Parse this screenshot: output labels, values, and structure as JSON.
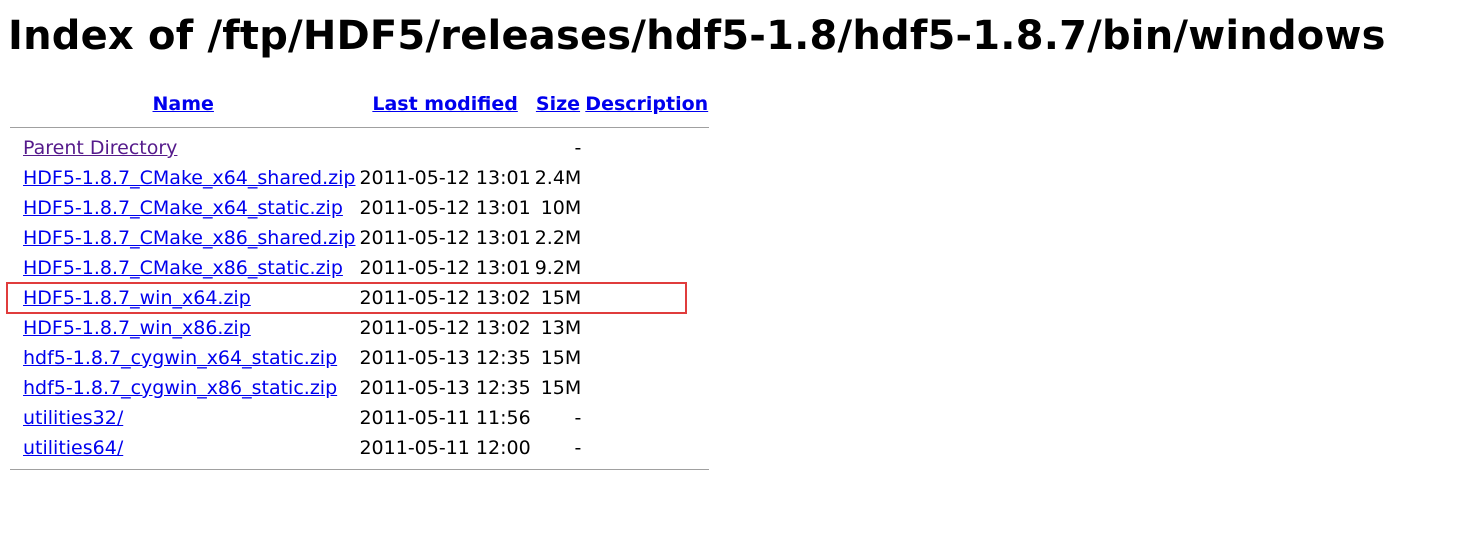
{
  "page": {
    "title": "Index of /ftp/HDF5/releases/hdf5-1.8/hdf5-1.8.7/bin/windows"
  },
  "columns": {
    "name": "Name",
    "last_modified": "Last modified",
    "size": "Size",
    "description": "Description"
  },
  "entries": [
    {
      "name": "Parent Directory",
      "modified": "",
      "size": "-",
      "description": "",
      "visited": true
    },
    {
      "name": "HDF5-1.8.7_CMake_x64_shared.zip",
      "modified": "2011-05-12 13:01",
      "size": "2.4M",
      "description": ""
    },
    {
      "name": "HDF5-1.8.7_CMake_x64_static.zip",
      "modified": "2011-05-12 13:01",
      "size": "10M",
      "description": ""
    },
    {
      "name": "HDF5-1.8.7_CMake_x86_shared.zip",
      "modified": "2011-05-12 13:01",
      "size": "2.2M",
      "description": ""
    },
    {
      "name": "HDF5-1.8.7_CMake_x86_static.zip",
      "modified": "2011-05-12 13:01",
      "size": "9.2M",
      "description": ""
    },
    {
      "name": "HDF5-1.8.7_win_x64.zip",
      "modified": "2011-05-12 13:02",
      "size": "15M",
      "description": "",
      "highlighted": true
    },
    {
      "name": "HDF5-1.8.7_win_x86.zip",
      "modified": "2011-05-12 13:02",
      "size": "13M",
      "description": ""
    },
    {
      "name": "hdf5-1.8.7_cygwin_x64_static.zip",
      "modified": "2011-05-13 12:35",
      "size": "15M",
      "description": ""
    },
    {
      "name": "hdf5-1.8.7_cygwin_x86_static.zip",
      "modified": "2011-05-13 12:35",
      "size": "15M",
      "description": ""
    },
    {
      "name": "utilities32/",
      "modified": "2011-05-11 11:56",
      "size": "-",
      "description": ""
    },
    {
      "name": "utilities64/",
      "modified": "2011-05-11 12:00",
      "size": "-",
      "description": ""
    }
  ],
  "colors": {
    "link": "#0000ee",
    "visited_link": "#551a8b",
    "highlight_border": "#e03c3c",
    "rule": "#a0a0a0"
  }
}
